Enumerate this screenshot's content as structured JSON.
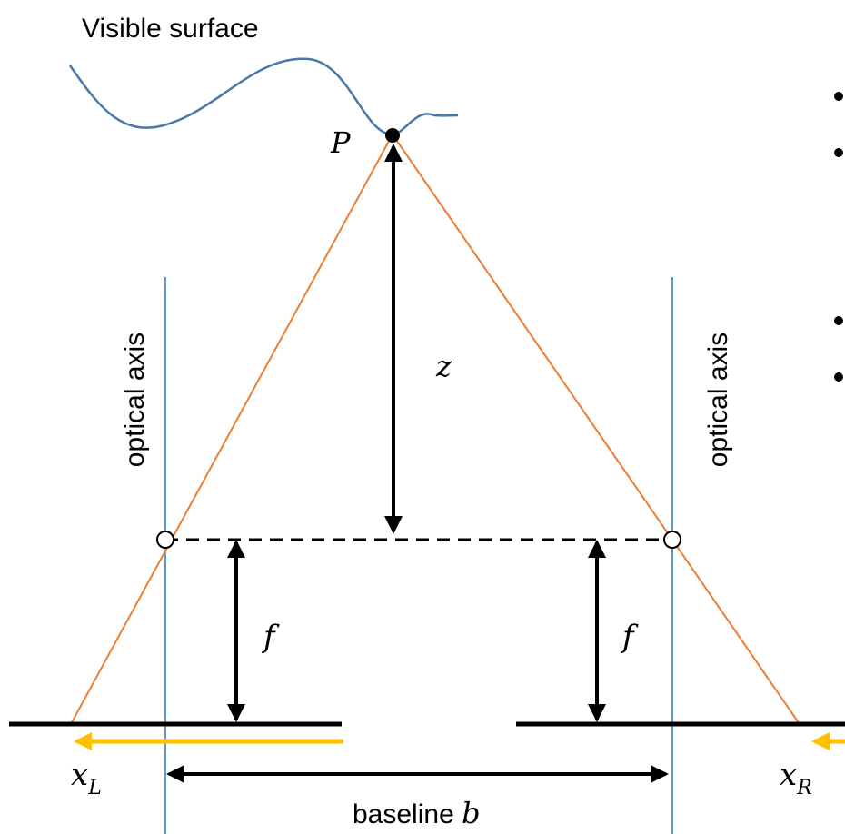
{
  "labels": {
    "surface": "Visible surface",
    "point": "P",
    "depth": "z",
    "focal_left": "f",
    "focal_right": "f",
    "axis_left": "optical axis",
    "axis_right": "optical axis",
    "xl_main": "x",
    "xl_sub": "L",
    "xr_main": "x",
    "xr_sub": "R",
    "baseline_text": "baseline ",
    "baseline_var": "b"
  },
  "colors": {
    "surface_curve": "#4a78a8",
    "sight_rays": "#ed7d31",
    "optical_axis": "#5b9bd5",
    "image_axis_arrow": "#ffc000",
    "lines": "#000000"
  },
  "icons": {
    "bullet_marks": "black-dot",
    "point_marker": "filled-circle",
    "camera_centers": "hollow-circle"
  }
}
